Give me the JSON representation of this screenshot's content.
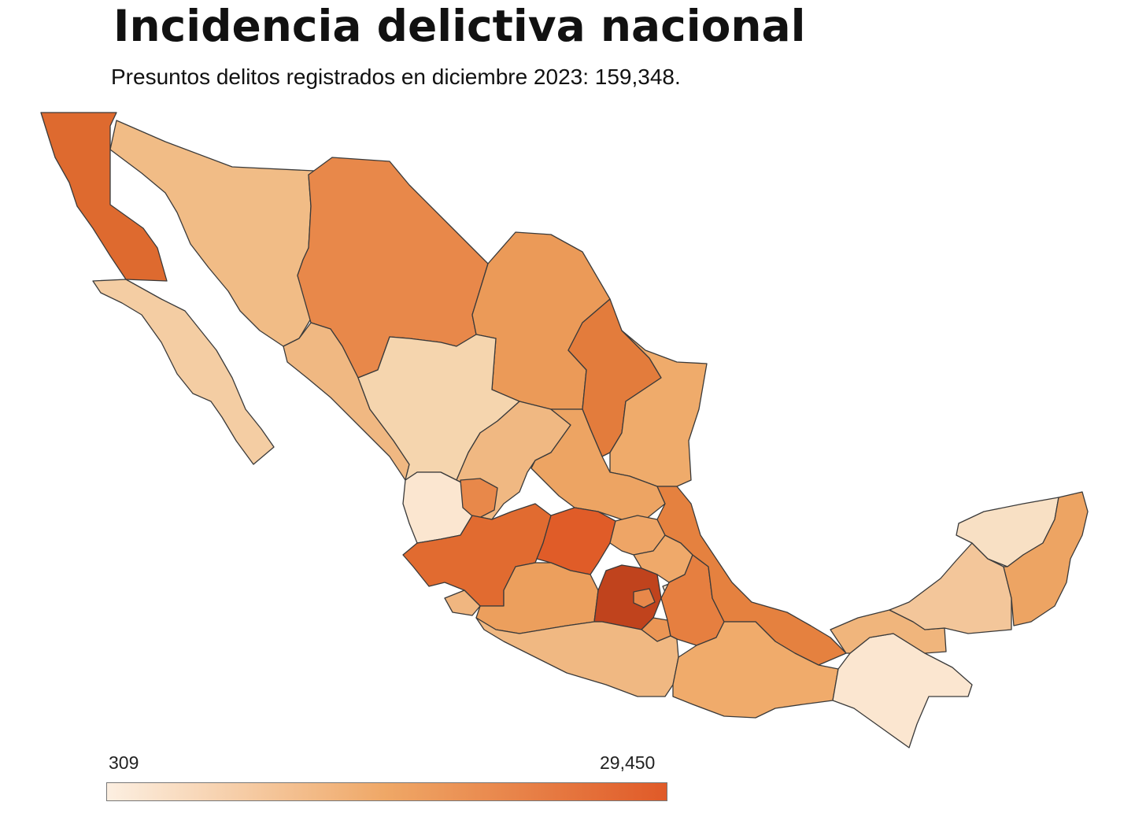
{
  "title": "Incidencia delictiva nacional",
  "subtitle": "Presuntos delitos registrados en diciembre 2023: 159,348.",
  "legend": {
    "min_label": "309",
    "max_label": "29,450",
    "min_value": 309,
    "max_value": 29450,
    "color_low": "#fcefe1",
    "color_mid": "#efa766",
    "color_high": "#e05a28"
  },
  "colors": {
    "background": "#ffffff",
    "border": "#3a3a3a"
  }
}
